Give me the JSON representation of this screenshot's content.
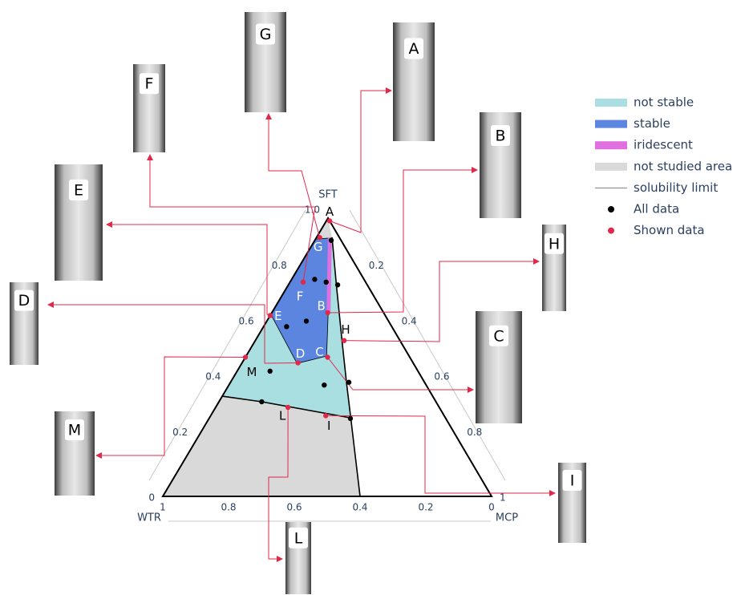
{
  "chart_data": {
    "type": "ternary",
    "axes": {
      "top": {
        "label": "SFT",
        "ticks": [
          0,
          0.2,
          0.4,
          0.6,
          0.8,
          {
            "value": 1,
            "label": "1.0"
          }
        ]
      },
      "left": {
        "label": "WTR",
        "ticks": [
          0,
          0.2,
          0.4,
          0.6,
          0.8,
          1
        ]
      },
      "right": {
        "label": "MCP",
        "ticks": [
          0.2,
          0.4,
          0.6,
          0.8,
          1
        ]
      }
    },
    "regions": [
      {
        "name": "not stable",
        "color": "#a9dfe0",
        "polygons": [
          [
            [
              0.925,
              0
            ],
            [
              0.931,
              0.047
            ],
            [
              0.755,
              0.149
            ],
            [
              0.556,
              0.266
            ],
            [
              0.406,
              0.355
            ],
            [
              0.282,
              0.43
            ],
            [
              0.36,
              0
            ]
          ]
        ]
      },
      {
        "name": "stable",
        "color": "#5b85df",
        "polygons": [
          [
            [
              0.925,
              0
            ],
            [
              0.928,
              0.04
            ],
            [
              0.663,
              0.17
            ],
            [
              0.504,
              0.245
            ],
            [
              0.478,
              0.168
            ],
            [
              0.654,
              0
            ]
          ]
        ]
      },
      {
        "name": "iridescent",
        "color": "#e070e0",
        "polygons": [
          [
            [
              0.93,
              0.035
            ],
            [
              0.93,
              0.047
            ],
            [
              0.663,
              0.177
            ],
            [
              0.663,
              0.165
            ]
          ]
        ]
      },
      {
        "name": "not studied area",
        "color": "#d9d9d9",
        "polygons": [
          [
            [
              1,
              0
            ],
            [
              0.925,
              0
            ],
            [
              0.931,
              0.047
            ]
          ],
          [
            [
              0.36,
              0
            ],
            [
              0.282,
              0.43
            ],
            [
              0,
              0.6
            ],
            [
              0,
              0
            ]
          ]
        ]
      }
    ],
    "boundary": {
      "name": "solubility limit",
      "color": "#000000",
      "lines": [
        [
          [
            0.931,
            0.047
          ],
          [
            0.755,
            0.149
          ],
          [
            0.556,
            0.266
          ],
          [
            0.406,
            0.355
          ],
          [
            0.282,
            0.43
          ],
          [
            0,
            0.6
          ]
        ],
        [
          [
            0.36,
            0
          ],
          [
            0.34,
            0.13
          ],
          [
            0.282,
            0.43
          ]
        ]
      ]
    },
    "series": [
      {
        "name": "All data",
        "color": "#000000",
        "sft": [
          0.92,
          0.78,
          0.77,
          0.76,
          0.63,
          0.61,
          0.45,
          0.4,
          0.41,
          0.34,
          0.28
        ],
        "mcp": [
          0.05,
          0.07,
          0.11,
          0.15,
          0.12,
          0.07,
          0.1,
          0.29,
          0.36,
          0.13,
          0.43
        ]
      },
      {
        "name": "Shown data",
        "color": "#e0294a",
        "labels": [
          "A",
          "G",
          "F",
          "B",
          "E",
          "H",
          "C",
          "D",
          "M",
          "L",
          "I"
        ],
        "sft": [
          0.99,
          0.93,
          0.77,
          0.66,
          0.65,
          0.56,
          0.5,
          0.48,
          0.5,
          0.32,
          0.29
        ],
        "mcp": [
          0.01,
          0.01,
          0.04,
          0.17,
          0,
          0.27,
          0.25,
          0.17,
          0,
          0.22,
          0.35
        ]
      }
    ]
  }
}
